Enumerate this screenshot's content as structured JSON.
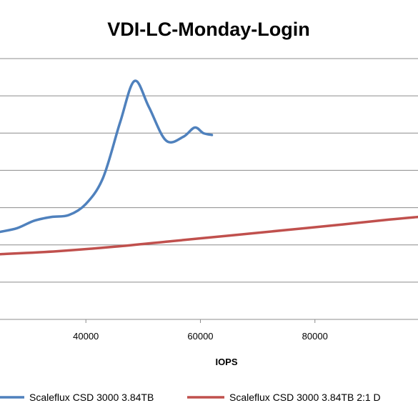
{
  "chart_data": {
    "type": "line",
    "title": "VDI-LC-Monday-Login",
    "xlabel": "IOPS",
    "ylabel": "",
    "xlim": [
      25000,
      98000
    ],
    "x_ticks": [
      40000,
      60000,
      80000
    ],
    "ylim": [
      0,
      7
    ],
    "grid": true,
    "legend_position": "bottom",
    "series": [
      {
        "name": "Scaleflux CSD 3000 3.84TB",
        "color": "#4F81BD",
        "points": [
          [
            25000,
            2.35
          ],
          [
            28000,
            2.45
          ],
          [
            31000,
            2.65
          ],
          [
            34000,
            2.75
          ],
          [
            37000,
            2.8
          ],
          [
            40000,
            3.1
          ],
          [
            43000,
            3.8
          ],
          [
            46000,
            5.3
          ],
          [
            48500,
            6.4
          ],
          [
            51000,
            5.7
          ],
          [
            54000,
            4.8
          ],
          [
            57000,
            4.9
          ],
          [
            59000,
            5.15
          ],
          [
            60500,
            5.0
          ],
          [
            62000,
            4.95
          ]
        ]
      },
      {
        "name": "Scaleflux CSD 3000 3.84TB 2:1 D",
        "color": "#C0504D",
        "points": [
          [
            25000,
            1.75
          ],
          [
            35000,
            1.83
          ],
          [
            45000,
            1.95
          ],
          [
            55000,
            2.1
          ],
          [
            65000,
            2.25
          ],
          [
            75000,
            2.4
          ],
          [
            85000,
            2.55
          ],
          [
            93000,
            2.68
          ],
          [
            98000,
            2.75
          ]
        ]
      }
    ]
  }
}
